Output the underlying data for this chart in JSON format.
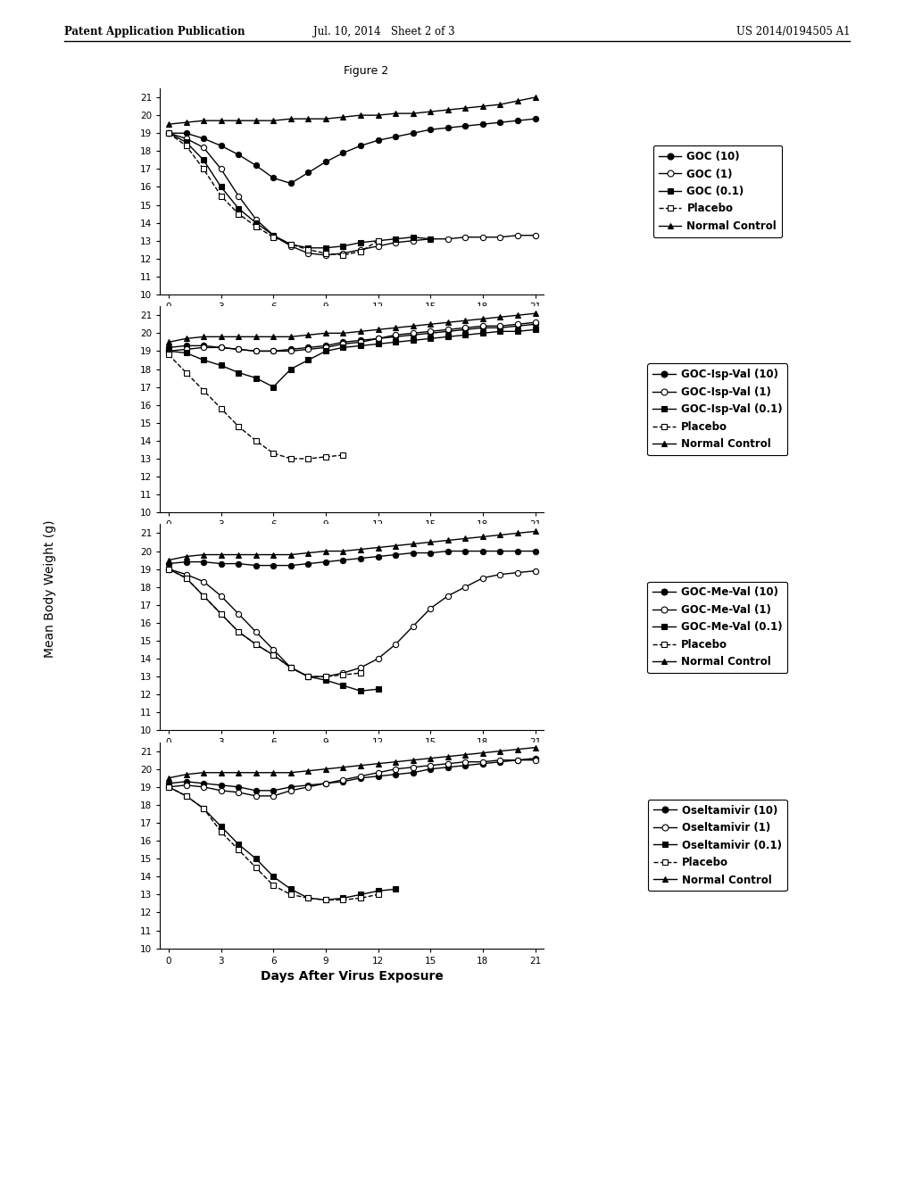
{
  "title": "Figure 2",
  "header_left": "Patent Application Publication",
  "header_center": "Jul. 10, 2014   Sheet 2 of 3",
  "header_right": "US 2014/0194505 A1",
  "xlabel": "Days After Virus Exposure",
  "ylabel": "Mean Body Weight (g)",
  "x_ticks": [
    0,
    3,
    6,
    9,
    12,
    15,
    18,
    21
  ],
  "ylim": [
    10,
    21.5
  ],
  "yticks": [
    10,
    11,
    12,
    13,
    14,
    15,
    16,
    17,
    18,
    19,
    20,
    21
  ],
  "panels": [
    {
      "series": [
        {
          "label": "GOC (10)",
          "x": [
            0,
            1,
            2,
            3,
            4,
            5,
            6,
            7,
            8,
            9,
            10,
            11,
            12,
            13,
            14,
            15,
            16,
            17,
            18,
            19,
            20,
            21
          ],
          "y": [
            19.0,
            19.0,
            18.7,
            18.3,
            17.8,
            17.2,
            16.5,
            16.2,
            16.8,
            17.4,
            17.9,
            18.3,
            18.6,
            18.8,
            19.0,
            19.2,
            19.3,
            19.4,
            19.5,
            19.6,
            19.7,
            19.8
          ],
          "marker": "o",
          "markerfacecolor": "black",
          "markeredgecolor": "black",
          "linestyle": "-",
          "color": "black"
        },
        {
          "label": "GOC (1)",
          "x": [
            0,
            1,
            2,
            3,
            4,
            5,
            6,
            7,
            8,
            9,
            10,
            11,
            12,
            13,
            14,
            15,
            16,
            17,
            18,
            19,
            20,
            21
          ],
          "y": [
            19.0,
            18.7,
            18.2,
            17.0,
            15.5,
            14.2,
            13.3,
            12.7,
            12.3,
            12.2,
            12.3,
            12.5,
            12.7,
            12.9,
            13.0,
            13.1,
            13.1,
            13.2,
            13.2,
            13.2,
            13.3,
            13.3
          ],
          "marker": "o",
          "markerfacecolor": "white",
          "markeredgecolor": "black",
          "linestyle": "-",
          "color": "black"
        },
        {
          "label": "GOC (0.1)",
          "x": [
            0,
            1,
            2,
            3,
            4,
            5,
            6,
            7,
            8,
            9,
            10,
            11,
            12,
            13,
            14,
            15
          ],
          "y": [
            19.0,
            18.5,
            17.5,
            16.0,
            14.8,
            14.0,
            13.3,
            12.8,
            12.6,
            12.6,
            12.7,
            12.9,
            13.0,
            13.1,
            13.2,
            13.1
          ],
          "marker": "s",
          "markerfacecolor": "black",
          "markeredgecolor": "black",
          "linestyle": "-",
          "color": "black"
        },
        {
          "label": "Placebo",
          "x": [
            0,
            1,
            2,
            3,
            4,
            5,
            6,
            7,
            8,
            9,
            10,
            11,
            12
          ],
          "y": [
            19.0,
            18.3,
            17.0,
            15.5,
            14.5,
            13.8,
            13.2,
            12.8,
            12.5,
            12.3,
            12.2,
            12.4,
            13.0
          ],
          "marker": "s",
          "markerfacecolor": "white",
          "markeredgecolor": "black",
          "linestyle": "--",
          "color": "black"
        },
        {
          "label": "Normal Control",
          "x": [
            0,
            1,
            2,
            3,
            4,
            5,
            6,
            7,
            8,
            9,
            10,
            11,
            12,
            13,
            14,
            15,
            16,
            17,
            18,
            19,
            20,
            21
          ],
          "y": [
            19.5,
            19.6,
            19.7,
            19.7,
            19.7,
            19.7,
            19.7,
            19.8,
            19.8,
            19.8,
            19.9,
            20.0,
            20.0,
            20.1,
            20.1,
            20.2,
            20.3,
            20.4,
            20.5,
            20.6,
            20.8,
            21.0
          ],
          "marker": "^",
          "markerfacecolor": "black",
          "markeredgecolor": "black",
          "linestyle": "-",
          "color": "black"
        }
      ]
    },
    {
      "series": [
        {
          "label": "GOC-Isp-Val (10)",
          "x": [
            0,
            1,
            2,
            3,
            4,
            5,
            6,
            7,
            8,
            9,
            10,
            11,
            12,
            13,
            14,
            15,
            16,
            17,
            18,
            19,
            20,
            21
          ],
          "y": [
            19.2,
            19.3,
            19.3,
            19.2,
            19.1,
            19.0,
            19.0,
            19.1,
            19.2,
            19.3,
            19.5,
            19.6,
            19.7,
            19.8,
            19.9,
            20.0,
            20.1,
            20.2,
            20.3,
            20.3,
            20.4,
            20.5
          ],
          "marker": "o",
          "markerfacecolor": "black",
          "markeredgecolor": "black",
          "linestyle": "-",
          "color": "black"
        },
        {
          "label": "GOC-Isp-Val (1)",
          "x": [
            0,
            1,
            2,
            3,
            4,
            5,
            6,
            7,
            8,
            9,
            10,
            11,
            12,
            13,
            14,
            15,
            16,
            17,
            18,
            19,
            20,
            21
          ],
          "y": [
            19.0,
            19.1,
            19.2,
            19.2,
            19.1,
            19.0,
            19.0,
            19.0,
            19.1,
            19.2,
            19.4,
            19.5,
            19.7,
            19.9,
            20.0,
            20.1,
            20.2,
            20.3,
            20.4,
            20.4,
            20.5,
            20.6
          ],
          "marker": "o",
          "markerfacecolor": "white",
          "markeredgecolor": "black",
          "linestyle": "-",
          "color": "black"
        },
        {
          "label": "GOC-Isp-Val (0.1)",
          "x": [
            0,
            1,
            2,
            3,
            4,
            5,
            6,
            7,
            8,
            9,
            10,
            11,
            12,
            13,
            14,
            15,
            16,
            17,
            18,
            19,
            20,
            21
          ],
          "y": [
            19.0,
            18.9,
            18.5,
            18.2,
            17.8,
            17.5,
            17.0,
            18.0,
            18.5,
            19.0,
            19.2,
            19.3,
            19.4,
            19.5,
            19.6,
            19.7,
            19.8,
            19.9,
            20.0,
            20.1,
            20.1,
            20.2
          ],
          "marker": "s",
          "markerfacecolor": "black",
          "markeredgecolor": "black",
          "linestyle": "-",
          "color": "black"
        },
        {
          "label": "Placebo",
          "x": [
            0,
            1,
            2,
            3,
            4,
            5,
            6,
            7,
            8,
            9,
            10
          ],
          "y": [
            18.8,
            17.8,
            16.8,
            15.8,
            14.8,
            14.0,
            13.3,
            13.0,
            13.0,
            13.1,
            13.2
          ],
          "marker": "s",
          "markerfacecolor": "white",
          "markeredgecolor": "black",
          "linestyle": "--",
          "color": "black"
        },
        {
          "label": "Normal Control",
          "x": [
            0,
            1,
            2,
            3,
            4,
            5,
            6,
            7,
            8,
            9,
            10,
            11,
            12,
            13,
            14,
            15,
            16,
            17,
            18,
            19,
            20,
            21
          ],
          "y": [
            19.5,
            19.7,
            19.8,
            19.8,
            19.8,
            19.8,
            19.8,
            19.8,
            19.9,
            20.0,
            20.0,
            20.1,
            20.2,
            20.3,
            20.4,
            20.5,
            20.6,
            20.7,
            20.8,
            20.9,
            21.0,
            21.1
          ],
          "marker": "^",
          "markerfacecolor": "black",
          "markeredgecolor": "black",
          "linestyle": "-",
          "color": "black"
        }
      ]
    },
    {
      "series": [
        {
          "label": "GOC-Me-Val (10)",
          "x": [
            0,
            1,
            2,
            3,
            4,
            5,
            6,
            7,
            8,
            9,
            10,
            11,
            12,
            13,
            14,
            15,
            16,
            17,
            18,
            19,
            20,
            21
          ],
          "y": [
            19.3,
            19.4,
            19.4,
            19.3,
            19.3,
            19.2,
            19.2,
            19.2,
            19.3,
            19.4,
            19.5,
            19.6,
            19.7,
            19.8,
            19.9,
            19.9,
            20.0,
            20.0,
            20.0,
            20.0,
            20.0,
            20.0
          ],
          "marker": "o",
          "markerfacecolor": "black",
          "markeredgecolor": "black",
          "linestyle": "-",
          "color": "black"
        },
        {
          "label": "GOC-Me-Val (1)",
          "x": [
            0,
            1,
            2,
            3,
            4,
            5,
            6,
            7,
            8,
            9,
            10,
            11,
            12,
            13,
            14,
            15,
            16,
            17,
            18,
            19,
            20,
            21
          ],
          "y": [
            19.0,
            18.7,
            18.3,
            17.5,
            16.5,
            15.5,
            14.5,
            13.5,
            13.0,
            13.0,
            13.2,
            13.5,
            14.0,
            14.8,
            15.8,
            16.8,
            17.5,
            18.0,
            18.5,
            18.7,
            18.8,
            18.9
          ],
          "marker": "o",
          "markerfacecolor": "white",
          "markeredgecolor": "black",
          "linestyle": "-",
          "color": "black"
        },
        {
          "label": "GOC-Me-Val (0.1)",
          "x": [
            0,
            1,
            2,
            3,
            4,
            5,
            6,
            7,
            8,
            9,
            10,
            11,
            12
          ],
          "y": [
            19.0,
            18.5,
            17.5,
            16.5,
            15.5,
            14.8,
            14.2,
            13.5,
            13.0,
            12.8,
            12.5,
            12.2,
            12.3
          ],
          "marker": "s",
          "markerfacecolor": "black",
          "markeredgecolor": "black",
          "linestyle": "-",
          "color": "black"
        },
        {
          "label": "Placebo",
          "x": [
            0,
            1,
            2,
            3,
            4,
            5,
            6,
            7,
            8,
            9,
            10,
            11
          ],
          "y": [
            19.0,
            18.5,
            17.5,
            16.5,
            15.5,
            14.8,
            14.2,
            13.5,
            13.0,
            13.0,
            13.1,
            13.2
          ],
          "marker": "s",
          "markerfacecolor": "white",
          "markeredgecolor": "black",
          "linestyle": "--",
          "color": "black"
        },
        {
          "label": "Normal Control",
          "x": [
            0,
            1,
            2,
            3,
            4,
            5,
            6,
            7,
            8,
            9,
            10,
            11,
            12,
            13,
            14,
            15,
            16,
            17,
            18,
            19,
            20,
            21
          ],
          "y": [
            19.5,
            19.7,
            19.8,
            19.8,
            19.8,
            19.8,
            19.8,
            19.8,
            19.9,
            20.0,
            20.0,
            20.1,
            20.2,
            20.3,
            20.4,
            20.5,
            20.6,
            20.7,
            20.8,
            20.9,
            21.0,
            21.1
          ],
          "marker": "^",
          "markerfacecolor": "black",
          "markeredgecolor": "black",
          "linestyle": "-",
          "color": "black"
        }
      ]
    },
    {
      "series": [
        {
          "label": "Oseltamivir (10)",
          "x": [
            0,
            1,
            2,
            3,
            4,
            5,
            6,
            7,
            8,
            9,
            10,
            11,
            12,
            13,
            14,
            15,
            16,
            17,
            18,
            19,
            20,
            21
          ],
          "y": [
            19.2,
            19.3,
            19.2,
            19.1,
            19.0,
            18.8,
            18.8,
            19.0,
            19.1,
            19.2,
            19.3,
            19.5,
            19.6,
            19.7,
            19.8,
            20.0,
            20.1,
            20.2,
            20.3,
            20.4,
            20.5,
            20.6
          ],
          "marker": "o",
          "markerfacecolor": "black",
          "markeredgecolor": "black",
          "linestyle": "-",
          "color": "black"
        },
        {
          "label": "Oseltamivir (1)",
          "x": [
            0,
            1,
            2,
            3,
            4,
            5,
            6,
            7,
            8,
            9,
            10,
            11,
            12,
            13,
            14,
            15,
            16,
            17,
            18,
            19,
            20,
            21
          ],
          "y": [
            19.0,
            19.1,
            19.0,
            18.8,
            18.7,
            18.5,
            18.5,
            18.8,
            19.0,
            19.2,
            19.4,
            19.6,
            19.8,
            20.0,
            20.1,
            20.2,
            20.3,
            20.4,
            20.4,
            20.5,
            20.5,
            20.5
          ],
          "marker": "o",
          "markerfacecolor": "white",
          "markeredgecolor": "black",
          "linestyle": "-",
          "color": "black"
        },
        {
          "label": "Oseltamivir (0.1)",
          "x": [
            0,
            1,
            2,
            3,
            4,
            5,
            6,
            7,
            8,
            9,
            10,
            11,
            12,
            13
          ],
          "y": [
            19.0,
            18.5,
            17.8,
            16.8,
            15.8,
            15.0,
            14.0,
            13.3,
            12.8,
            12.7,
            12.8,
            13.0,
            13.2,
            13.3
          ],
          "marker": "s",
          "markerfacecolor": "black",
          "markeredgecolor": "black",
          "linestyle": "-",
          "color": "black"
        },
        {
          "label": "Placebo",
          "x": [
            0,
            1,
            2,
            3,
            4,
            5,
            6,
            7,
            8,
            9,
            10,
            11,
            12
          ],
          "y": [
            19.0,
            18.5,
            17.8,
            16.5,
            15.5,
            14.5,
            13.5,
            13.0,
            12.8,
            12.7,
            12.7,
            12.8,
            13.0
          ],
          "marker": "s",
          "markerfacecolor": "white",
          "markeredgecolor": "black",
          "linestyle": "--",
          "color": "black"
        },
        {
          "label": "Normal Control",
          "x": [
            0,
            1,
            2,
            3,
            4,
            5,
            6,
            7,
            8,
            9,
            10,
            11,
            12,
            13,
            14,
            15,
            16,
            17,
            18,
            19,
            20,
            21
          ],
          "y": [
            19.5,
            19.7,
            19.8,
            19.8,
            19.8,
            19.8,
            19.8,
            19.8,
            19.9,
            20.0,
            20.1,
            20.2,
            20.3,
            20.4,
            20.5,
            20.6,
            20.7,
            20.8,
            20.9,
            21.0,
            21.1,
            21.2
          ],
          "marker": "^",
          "markerfacecolor": "black",
          "markeredgecolor": "black",
          "linestyle": "-",
          "color": "black"
        }
      ]
    }
  ]
}
